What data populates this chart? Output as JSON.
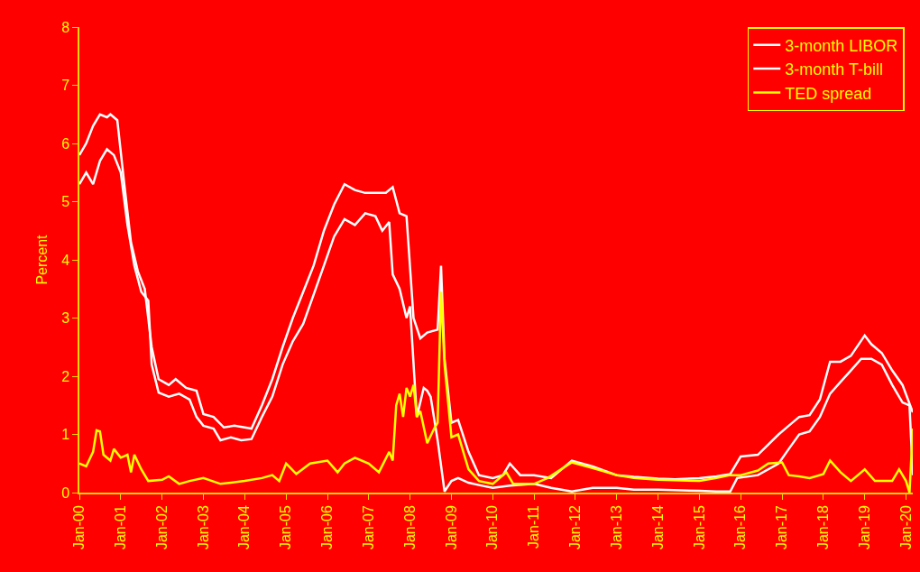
{
  "chart_data": {
    "type": "line",
    "ylabel": "Percent",
    "ylim": [
      0,
      8
    ],
    "yticks": [
      0,
      1,
      2,
      3,
      4,
      5,
      6,
      7,
      8
    ],
    "xlim": [
      "2000-01",
      "2020-03"
    ],
    "xticks": [
      {
        "value": "2000-01",
        "label": "Jan-00"
      },
      {
        "value": "2001-01",
        "label": "Jan-01"
      },
      {
        "value": "2002-01",
        "label": "Jan-02"
      },
      {
        "value": "2003-01",
        "label": "Jan-03"
      },
      {
        "value": "2004-01",
        "label": "Jan-04"
      },
      {
        "value": "2005-01",
        "label": "Jan-05"
      },
      {
        "value": "2006-01",
        "label": "Jan-06"
      },
      {
        "value": "2007-01",
        "label": "Jan-07"
      },
      {
        "value": "2008-01",
        "label": "Jan-08"
      },
      {
        "value": "2009-01",
        "label": "Jan-09"
      },
      {
        "value": "2010-01",
        "label": "Jan-10"
      },
      {
        "value": "2011-01",
        "label": "Jan-11"
      },
      {
        "value": "2012-01",
        "label": "Jan-12"
      },
      {
        "value": "2013-01",
        "label": "Jan-13"
      },
      {
        "value": "2014-01",
        "label": "Jan-14"
      },
      {
        "value": "2015-01",
        "label": "Jan-15"
      },
      {
        "value": "2016-01",
        "label": "Jan-16"
      },
      {
        "value": "2017-01",
        "label": "Jan-17"
      },
      {
        "value": "2018-01",
        "label": "Jan-18"
      },
      {
        "value": "2019-01",
        "label": "Jan-19"
      },
      {
        "value": "2020-01",
        "label": "Jan-20"
      }
    ],
    "grid": false,
    "legend": "top right",
    "marker": "none",
    "line_style": "solid",
    "series": [
      {
        "name": "3-month LIBOR",
        "color": "#ffffff",
        "x": [
          "2000-01",
          "2000-03",
          "2000-05",
          "2000-07",
          "2000-09",
          "2000-10",
          "2000-12",
          "2001-02",
          "2001-04",
          "2001-06",
          "2001-08",
          "2001-10",
          "2001-12",
          "2002-03",
          "2002-05",
          "2002-08",
          "2002-11",
          "2003-01",
          "2003-04",
          "2003-07",
          "2003-10",
          "2004-01",
          "2004-03",
          "2004-06",
          "2004-09",
          "2004-12",
          "2005-03",
          "2005-06",
          "2005-09",
          "2005-12",
          "2006-03",
          "2006-06",
          "2006-09",
          "2006-12",
          "2007-03",
          "2007-06",
          "2007-08",
          "2007-10",
          "2007-12",
          "2008-02",
          "2008-04",
          "2008-06",
          "2008-09",
          "2008-10",
          "2008-11",
          "2009-01",
          "2009-03",
          "2009-06",
          "2009-09",
          "2010-01",
          "2010-04",
          "2010-06",
          "2010-09",
          "2011-01",
          "2011-06",
          "2011-12",
          "2012-06",
          "2013-01",
          "2013-06",
          "2014-01",
          "2014-06",
          "2015-01",
          "2015-06",
          "2015-10",
          "2016-01",
          "2016-06",
          "2016-12",
          "2017-03",
          "2017-06",
          "2017-09",
          "2017-12",
          "2018-03",
          "2018-06",
          "2018-09",
          "2019-01",
          "2019-03",
          "2019-06",
          "2019-09",
          "2019-12",
          "2020-03"
        ],
        "values": [
          5.8,
          6.0,
          6.3,
          6.5,
          6.45,
          6.5,
          6.4,
          5.3,
          4.3,
          3.8,
          3.5,
          2.5,
          1.95,
          1.85,
          1.95,
          1.8,
          1.75,
          1.35,
          1.3,
          1.12,
          1.15,
          1.12,
          1.1,
          1.5,
          1.95,
          2.5,
          3.0,
          3.45,
          3.9,
          4.5,
          4.95,
          5.3,
          5.2,
          5.15,
          5.15,
          5.15,
          5.25,
          4.8,
          4.75,
          3.0,
          2.65,
          2.75,
          2.8,
          3.9,
          2.3,
          1.2,
          1.25,
          0.7,
          0.3,
          0.25,
          0.3,
          0.5,
          0.3,
          0.3,
          0.25,
          0.55,
          0.45,
          0.3,
          0.27,
          0.24,
          0.23,
          0.25,
          0.28,
          0.32,
          0.62,
          0.65,
          1.0,
          1.15,
          1.3,
          1.33,
          1.6,
          2.25,
          2.25,
          2.35,
          2.7,
          2.55,
          2.4,
          2.1,
          1.85,
          1.38
        ]
      },
      {
        "name": "3-month T-bill",
        "color": "#ffffff",
        "x": [
          "2000-01",
          "2000-03",
          "2000-05",
          "2000-07",
          "2000-09",
          "2000-11",
          "2001-01",
          "2001-03",
          "2001-05",
          "2001-07",
          "2001-09",
          "2001-10",
          "2001-12",
          "2002-03",
          "2002-06",
          "2002-09",
          "2002-11",
          "2003-01",
          "2003-04",
          "2003-06",
          "2003-09",
          "2003-12",
          "2004-03",
          "2004-06",
          "2004-09",
          "2004-12",
          "2005-03",
          "2005-06",
          "2005-09",
          "2005-12",
          "2006-03",
          "2006-06",
          "2006-09",
          "2006-12",
          "2007-03",
          "2007-05",
          "2007-07",
          "2007-08",
          "2007-10",
          "2007-12",
          "2008-01",
          "2008-03",
          "2008-05",
          "2008-06",
          "2008-07",
          "2008-09",
          "2008-11",
          "2009-01",
          "2009-03",
          "2009-06",
          "2009-09",
          "2010-01",
          "2010-06",
          "2011-01",
          "2011-06",
          "2011-12",
          "2012-06",
          "2013-01",
          "2013-06",
          "2014-01",
          "2015-01",
          "2015-06",
          "2015-10",
          "2015-12",
          "2016-06",
          "2016-12",
          "2017-03",
          "2017-06",
          "2017-09",
          "2017-12",
          "2018-03",
          "2018-06",
          "2018-09",
          "2018-12",
          "2019-03",
          "2019-06",
          "2019-09",
          "2019-12",
          "2020-02",
          "2020-03"
        ],
        "values": [
          5.3,
          5.5,
          5.3,
          5.7,
          5.9,
          5.8,
          5.5,
          4.6,
          3.9,
          3.45,
          3.3,
          2.2,
          1.72,
          1.65,
          1.7,
          1.6,
          1.3,
          1.15,
          1.1,
          0.9,
          0.95,
          0.9,
          0.92,
          1.3,
          1.65,
          2.2,
          2.6,
          2.9,
          3.4,
          3.9,
          4.4,
          4.7,
          4.6,
          4.8,
          4.75,
          4.5,
          4.65,
          3.75,
          3.5,
          3.0,
          3.2,
          1.3,
          1.8,
          1.75,
          1.65,
          0.9,
          0.02,
          0.2,
          0.25,
          0.17,
          0.13,
          0.08,
          0.12,
          0.15,
          0.08,
          0.02,
          0.08,
          0.08,
          0.05,
          0.05,
          0.03,
          0.02,
          0.02,
          0.25,
          0.3,
          0.5,
          0.75,
          1.0,
          1.05,
          1.3,
          1.7,
          1.9,
          2.1,
          2.3,
          2.3,
          2.2,
          1.85,
          1.55,
          1.5,
          0.3
        ]
      },
      {
        "name": "TED spread",
        "color": "#ffff00",
        "x": [
          "2000-01",
          "2000-03",
          "2000-05",
          "2000-06",
          "2000-07",
          "2000-08",
          "2000-10",
          "2000-11",
          "2001-01",
          "2001-03",
          "2001-04",
          "2001-05",
          "2001-07",
          "2001-09",
          "2002-01",
          "2002-03",
          "2002-06",
          "2002-09",
          "2003-01",
          "2003-06",
          "2004-01",
          "2004-06",
          "2004-09",
          "2004-11",
          "2005-01",
          "2005-04",
          "2005-08",
          "2006-01",
          "2006-04",
          "2006-06",
          "2006-09",
          "2007-01",
          "2007-04",
          "2007-07",
          "2007-08",
          "2007-09",
          "2007-10",
          "2007-11",
          "2007-12",
          "2008-01",
          "2008-02",
          "2008-03",
          "2008-04",
          "2008-06",
          "2008-08",
          "2008-09",
          "2008-10",
          "2008-11",
          "2009-01",
          "2009-03",
          "2009-06",
          "2009-09",
          "2010-01",
          "2010-05",
          "2010-07",
          "2011-01",
          "2011-05",
          "2011-12",
          "2012-06",
          "2013-01",
          "2013-06",
          "2014-01",
          "2015-01",
          "2015-06",
          "2015-10",
          "2016-01",
          "2016-06",
          "2016-09",
          "2017-01",
          "2017-03",
          "2017-06",
          "2017-09",
          "2018-01",
          "2018-03",
          "2018-06",
          "2018-09",
          "2019-01",
          "2019-04",
          "2019-09",
          "2019-11",
          "2020-01",
          "2020-02",
          "2020-03"
        ],
        "values": [
          0.5,
          0.45,
          0.7,
          1.07,
          1.05,
          0.65,
          0.55,
          0.75,
          0.6,
          0.65,
          0.35,
          0.65,
          0.4,
          0.2,
          0.22,
          0.28,
          0.15,
          0.2,
          0.25,
          0.15,
          0.2,
          0.25,
          0.3,
          0.2,
          0.5,
          0.32,
          0.5,
          0.55,
          0.35,
          0.5,
          0.6,
          0.5,
          0.35,
          0.7,
          0.55,
          1.5,
          1.7,
          1.3,
          1.8,
          1.65,
          1.85,
          1.3,
          1.4,
          0.85,
          1.1,
          1.2,
          3.45,
          2.2,
          0.95,
          1.0,
          0.4,
          0.2,
          0.15,
          0.35,
          0.15,
          0.15,
          0.25,
          0.52,
          0.42,
          0.3,
          0.25,
          0.22,
          0.2,
          0.25,
          0.3,
          0.3,
          0.38,
          0.5,
          0.52,
          0.3,
          0.28,
          0.25,
          0.32,
          0.55,
          0.35,
          0.2,
          0.4,
          0.2,
          0.2,
          0.4,
          0.2,
          0.0,
          1.1
        ]
      }
    ]
  }
}
